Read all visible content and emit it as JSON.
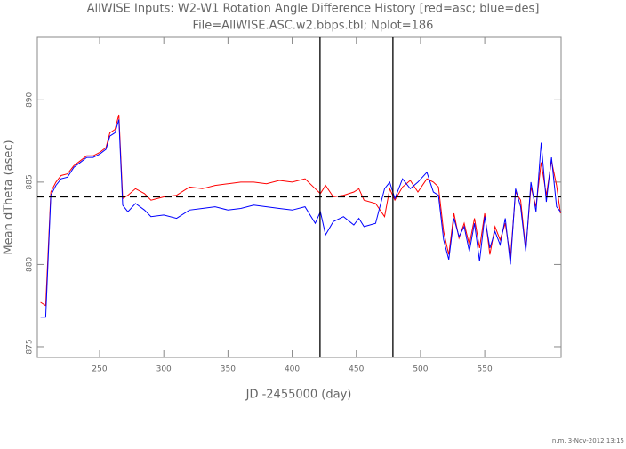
{
  "chart_data": {
    "type": "line",
    "title": "AllWISE Inputs: W2-W1 Rotation Angle Difference History [red=asc; blue=des]",
    "subtitle": "File=AllWISE.ASC.w2.bbps.tbl; Nplot=186",
    "xlabel": "JD -2455000 (day)",
    "ylabel": "Mean dTheta (asec)",
    "footer": "n.m. 3-Nov-2012 13:15",
    "x": [
      204,
      208,
      212,
      216,
      220,
      225,
      230,
      235,
      240,
      245,
      250,
      255,
      258,
      262,
      265,
      268,
      272,
      278,
      285,
      290,
      300,
      310,
      320,
      330,
      340,
      350,
      360,
      370,
      380,
      390,
      400,
      410,
      418,
      422,
      426,
      432,
      440,
      448,
      452,
      456,
      465,
      472,
      476,
      480,
      486,
      492,
      498,
      505,
      510,
      514,
      518,
      522,
      526,
      530,
      534,
      538,
      542,
      546,
      550,
      554,
      558,
      562,
      566,
      570,
      574,
      578,
      582,
      586,
      590,
      594,
      598,
      602,
      606,
      609
    ],
    "series": [
      {
        "name": "asc",
        "color": "#ff0000",
        "values": [
          877.7,
          877.5,
          884.4,
          885.0,
          885.4,
          885.5,
          886.0,
          886.3,
          886.6,
          886.6,
          886.8,
          887.1,
          888.0,
          888.2,
          889.1,
          884.0,
          884.2,
          884.6,
          884.3,
          883.9,
          884.1,
          884.2,
          884.7,
          884.6,
          884.8,
          884.9,
          885.0,
          885.0,
          884.9,
          885.1,
          885.0,
          885.2,
          884.6,
          884.3,
          884.8,
          884.1,
          884.2,
          884.4,
          884.6,
          883.9,
          883.7,
          882.9,
          884.6,
          883.9,
          884.7,
          885.1,
          884.4,
          885.2,
          885.0,
          884.7,
          882.0,
          880.6,
          883.1,
          881.6,
          882.5,
          881.2,
          882.8,
          881.0,
          883.1,
          880.6,
          882.3,
          881.5,
          882.5,
          880.4,
          884.4,
          883.9,
          880.9,
          884.7,
          883.5,
          886.2,
          884.2,
          886.3,
          884.8,
          883.1
        ]
      },
      {
        "name": "des",
        "color": "#0000ff",
        "values": [
          876.8,
          876.8,
          884.2,
          884.8,
          885.2,
          885.3,
          885.9,
          886.2,
          886.5,
          886.5,
          886.7,
          887.0,
          887.8,
          888.0,
          888.8,
          883.6,
          883.2,
          883.7,
          883.3,
          882.9,
          883.0,
          882.8,
          883.3,
          883.4,
          883.5,
          883.3,
          883.4,
          883.6,
          883.5,
          883.4,
          883.3,
          883.5,
          882.5,
          883.2,
          881.8,
          882.6,
          882.9,
          882.4,
          882.8,
          882.3,
          882.5,
          884.6,
          885.0,
          884.0,
          885.2,
          884.6,
          885.0,
          885.6,
          884.4,
          884.2,
          881.5,
          880.3,
          882.8,
          881.7,
          882.3,
          880.8,
          882.5,
          880.2,
          882.9,
          881.0,
          882.0,
          881.2,
          882.8,
          880.0,
          884.6,
          883.5,
          880.8,
          885.0,
          883.2,
          887.4,
          883.8,
          886.5,
          883.5,
          883.2
        ]
      }
    ],
    "hline": 884.1,
    "vlines": [
      421.7,
      478.5
    ],
    "xlim": [
      201.5,
      609.5
    ],
    "ylim": [
      874.35,
      893.8
    ],
    "xticks": [
      250,
      300,
      350,
      400,
      450,
      500,
      550
    ],
    "yticks": [
      875,
      880,
      885,
      890
    ]
  }
}
